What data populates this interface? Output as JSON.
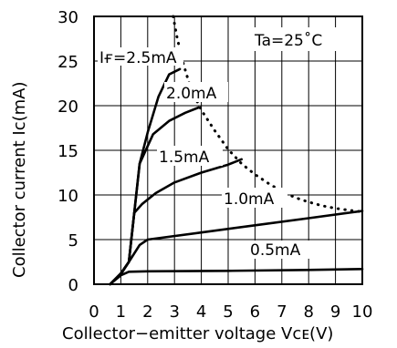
{
  "chart_data": {
    "type": "line",
    "title": "",
    "xlabel": "Collector−emitter voltage Vᴄᴇ(V)",
    "ylabel": "Collector current Ic(mA)",
    "xlim": [
      0,
      10
    ],
    "ylim": [
      0,
      30
    ],
    "x_ticks": [
      "0",
      "1",
      "2",
      "3",
      "4",
      "5",
      "6",
      "7",
      "8",
      "9",
      "10"
    ],
    "y_ticks": [
      "0",
      "5",
      "10",
      "15",
      "20",
      "25",
      "30"
    ],
    "grid": true,
    "annotations": [
      "Ta=25˚C"
    ],
    "series": [
      {
        "name": "0.5mA",
        "label": "0.5mA",
        "x": [
          0.6,
          1.0,
          1.3,
          2,
          5,
          8,
          10
        ],
        "y": [
          0,
          1.0,
          1.4,
          1.45,
          1.5,
          1.6,
          1.7
        ]
      },
      {
        "name": "1.0mA",
        "label": "1.0mA",
        "x": [
          0.6,
          1.0,
          1.3,
          1.7,
          2.0,
          4,
          6,
          8,
          10
        ],
        "y": [
          0,
          1.1,
          2.5,
          4.4,
          5.0,
          5.8,
          6.6,
          7.4,
          8.2
        ]
      },
      {
        "name": "1.5mA",
        "label": "1.5mA",
        "x": [
          0.6,
          1.0,
          1.3,
          1.5,
          1.8,
          2.3,
          3,
          4,
          5,
          5.5
        ],
        "y": [
          0,
          1.2,
          2.5,
          8.0,
          9.0,
          10.2,
          11.4,
          12.5,
          13.4,
          14.0
        ]
      },
      {
        "name": "2.0mA",
        "label": "2.0mA",
        "x": [
          0.6,
          1.0,
          1.3,
          1.5,
          1.7,
          2.2,
          2.8,
          3.4,
          3.9
        ],
        "y": [
          0,
          1.2,
          2.5,
          8.0,
          13.5,
          16.8,
          18.3,
          19.2,
          19.8
        ]
      },
      {
        "name": "IF=2.5mA",
        "label": "IF=2.5mA",
        "x": [
          0.6,
          1.0,
          1.3,
          1.5,
          1.7,
          2.0,
          2.4,
          2.8,
          3.2
        ],
        "y": [
          0,
          1.2,
          2.5,
          8.0,
          13.5,
          17.0,
          21.0,
          23.5,
          24.1
        ]
      },
      {
        "name": "",
        "style": "dotted",
        "x": [
          2.95,
          3.1,
          3.3,
          3.6,
          4.0,
          4.5,
          5.0,
          5.5,
          6.0,
          6.5,
          7.0,
          7.5,
          8.0,
          8.5,
          9.0,
          9.5,
          10.0
        ],
        "y": [
          30,
          27.6,
          25.0,
          22.0,
          19.5,
          17.2,
          15.1,
          13.5,
          12.3,
          11.3,
          10.4,
          9.7,
          9.2,
          8.8,
          8.5,
          8.3,
          8.1
        ]
      }
    ]
  },
  "legend_labels": {
    "ta": "Ta=25˚C",
    "if25": "Iғ=2.5mA",
    "if20": "2.0mA",
    "if15": "1.5mA",
    "if10": "1.0mA",
    "if05": "0.5mA"
  },
  "axis_labels": {
    "x": "Collector−emitter voltage Vᴄᴇ(V)",
    "y": "Collector current Ic(mA)"
  }
}
